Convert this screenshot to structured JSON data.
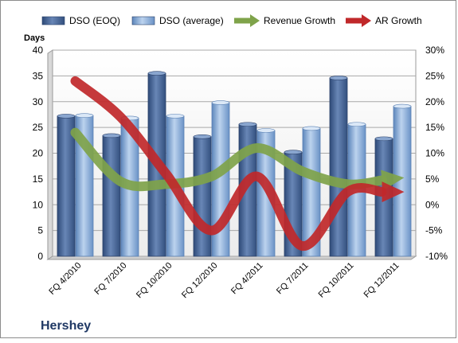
{
  "chart_data": {
    "type": "bar",
    "title": "Hershey",
    "categories": [
      "FQ 4/2010",
      "FQ 7/2010",
      "FQ 10/2010",
      "FQ 12/2010",
      "FQ 4/2011",
      "FQ 7/2011",
      "FQ 10/2011",
      "FQ 12/2011"
    ],
    "ylabel": "Days",
    "ylim": [
      0,
      40
    ],
    "yticks": [
      0,
      5,
      10,
      15,
      20,
      25,
      30,
      35,
      40
    ],
    "y2lim": [
      -10,
      30
    ],
    "y2ticks": [
      "-10%",
      "-5%",
      "0%",
      "5%",
      "10%",
      "15%",
      "20%",
      "25%",
      "30%"
    ],
    "legend_position": "top",
    "series": [
      {
        "name": "DSO (EOQ)",
        "kind": "bar",
        "axis": "left",
        "color": "#4f6fa0",
        "values": [
          27.2,
          23.4,
          35.5,
          23.2,
          25.6,
          20.2,
          34.6,
          22.8
        ]
      },
      {
        "name": "DSO (average)",
        "kind": "bar",
        "axis": "left",
        "color": "#8fb2dc",
        "values": [
          27.3,
          26.8,
          27.2,
          29.8,
          24.4,
          24.8,
          25.6,
          29.1
        ]
      },
      {
        "name": "Revenue Growth",
        "kind": "arrow",
        "axis": "right",
        "color": "#7fa34a",
        "values": [
          14.0,
          4.5,
          4.0,
          5.5,
          11.0,
          6.5,
          4.0,
          5.0
        ]
      },
      {
        "name": "AR Growth",
        "kind": "arrow",
        "axis": "right",
        "color": "#c0282a",
        "values": [
          24.0,
          17.0,
          6.0,
          -5.0,
          5.5,
          -8.0,
          2.5,
          2.5
        ]
      }
    ]
  }
}
